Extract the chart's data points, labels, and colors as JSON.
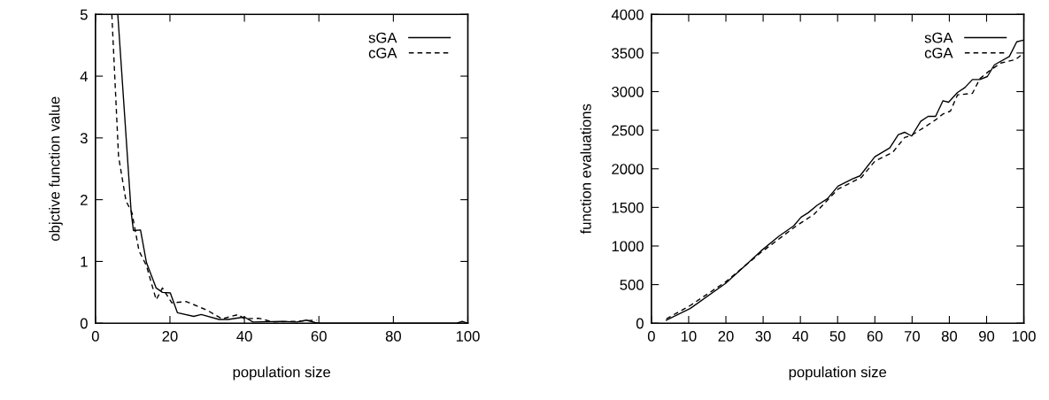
{
  "chart_data": [
    {
      "type": "line",
      "xlabel": "population size",
      "ylabel": "objctive function value",
      "xlim": [
        0,
        100
      ],
      "ylim": [
        0,
        5
      ],
      "xticks": [
        0,
        20,
        40,
        60,
        80,
        100
      ],
      "yticks": [
        0,
        1,
        2,
        3,
        4,
        5
      ],
      "legend": "top right",
      "grid": false,
      "series": [
        {
          "name": "sGA",
          "color": "#000000",
          "line_style": "solid",
          "x": [
            6,
            9.6,
            10.2,
            12.1,
            13.7,
            16.3,
            18,
            20.1,
            22,
            26.4,
            28.4,
            33.2,
            35.6,
            40,
            42.3,
            50,
            54,
            56.6,
            59,
            60,
            97,
            98.5,
            100
          ],
          "values": [
            5,
            1.79,
            1.5,
            1.51,
            0.98,
            0.57,
            0.5,
            0.49,
            0.17,
            0.11,
            0.14,
            0.06,
            0.06,
            0.1,
            0.02,
            0.03,
            0.02,
            0.05,
            0.01,
            0,
            0,
            0.03,
            0
          ]
        },
        {
          "name": "cGA",
          "color": "#000000",
          "line_style": "dashed",
          "x": [
            4.4,
            6.2,
            8.2,
            9.8,
            11.7,
            13.7,
            16.3,
            18,
            20.5,
            24.4,
            30,
            34,
            38.3,
            40,
            43.9,
            47.5,
            54,
            59.4
          ],
          "values": [
            5,
            2.7,
            1.98,
            1.79,
            1.17,
            0.93,
            0.38,
            0.57,
            0.33,
            0.35,
            0.21,
            0.07,
            0.14,
            0.07,
            0.08,
            0.02,
            0.03,
            0.05
          ]
        }
      ]
    },
    {
      "type": "line",
      "xlabel": "population size",
      "ylabel": "function evaluations",
      "xlim": [
        0,
        100
      ],
      "ylim": [
        0,
        4000
      ],
      "xticks": [
        0,
        10,
        20,
        30,
        40,
        50,
        60,
        70,
        80,
        90,
        100
      ],
      "yticks": [
        0,
        500,
        1000,
        1500,
        2000,
        2500,
        3000,
        3500,
        4000
      ],
      "legend": "top right",
      "grid": false,
      "series": [
        {
          "name": "sGA",
          "color": "#000000",
          "line_style": "solid",
          "x": [
            4,
            10.4,
            19.9,
            24.7,
            29.4,
            34.2,
            38.2,
            40.2,
            42.1,
            44.5,
            47.3,
            50.1,
            54,
            56,
            60,
            62,
            64,
            66.3,
            68,
            69.9,
            72.3,
            74.3,
            76.3,
            78.3,
            79.8,
            82.2,
            84.2,
            86.2,
            88.2,
            90.2,
            92.1,
            96.1,
            98.1,
            100
          ],
          "values": [
            38,
            190,
            515,
            725,
            935,
            1126,
            1260,
            1374,
            1431,
            1527,
            1615,
            1775,
            1870,
            1908,
            2156,
            2214,
            2271,
            2443,
            2473,
            2424,
            2615,
            2679,
            2679,
            2882,
            2863,
            2989,
            3053,
            3156,
            3156,
            3195,
            3347,
            3454,
            3645,
            3668
          ]
        },
        {
          "name": "cGA",
          "color": "#000000",
          "line_style": "dashed",
          "x": [
            4,
            10.4,
            19.9,
            29.4,
            38.9,
            43.7,
            50.1,
            56.4,
            60,
            64.8,
            68,
            69.9,
            73.9,
            76.3,
            78.3,
            80.3,
            82.2,
            86.2,
            88.2,
            90.6,
            93.8,
            97.8,
            100
          ],
          "values": [
            57,
            229,
            534,
            916,
            1260,
            1412,
            1737,
            1889,
            2099,
            2214,
            2405,
            2435,
            2557,
            2634,
            2710,
            2748,
            2958,
            2977,
            3168,
            3263,
            3370,
            3416,
            3500
          ]
        }
      ]
    }
  ]
}
